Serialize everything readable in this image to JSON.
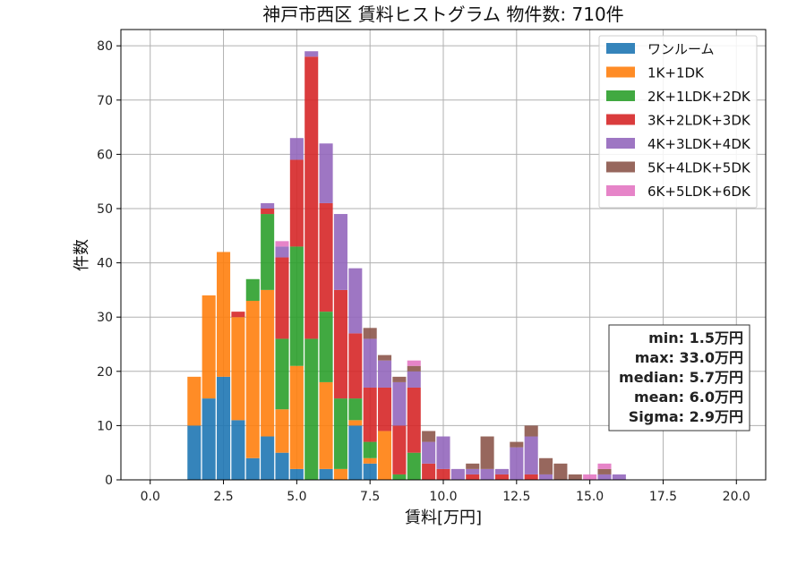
{
  "chart_data": {
    "type": "bar",
    "title": "神戸市西区 賃料ヒストグラム 物件数: 710件",
    "xlabel": "賃料[万円]",
    "ylabel": "件数",
    "xlim": [
      -1,
      21
    ],
    "ylim": [
      0,
      83
    ],
    "xticks": [
      0.0,
      2.5,
      5.0,
      7.5,
      10.0,
      12.5,
      15.0,
      17.5,
      20.0
    ],
    "xtick_labels": [
      "0.0",
      "2.5",
      "5.0",
      "7.5",
      "10.0",
      "12.5",
      "15.0",
      "17.5",
      "20.0"
    ],
    "yticks": [
      0,
      10,
      20,
      30,
      40,
      50,
      60,
      70,
      80
    ],
    "ytick_labels": [
      "0",
      "10",
      "20",
      "30",
      "40",
      "50",
      "60",
      "70",
      "80"
    ],
    "grid": true,
    "stacked": true,
    "legend_position": "top-right",
    "bin_width": 0.5,
    "x": [
      1.5,
      2.0,
      2.5,
      3.0,
      3.5,
      4.0,
      4.5,
      5.0,
      5.5,
      6.0,
      6.5,
      7.0,
      7.5,
      8.0,
      8.5,
      9.0,
      9.5,
      10.0,
      10.5,
      11.0,
      11.5,
      12.0,
      12.5,
      13.0,
      13.5,
      14.0,
      14.5,
      15.0,
      15.5,
      16.0
    ],
    "series": [
      {
        "name": "ワンルーム",
        "color": "#1f77b4",
        "values": [
          10,
          15,
          19,
          11,
          4,
          8,
          5,
          2,
          0,
          2,
          0,
          10,
          3,
          0,
          0,
          0,
          0,
          0,
          0,
          0,
          0,
          0,
          0,
          0,
          0,
          0,
          0,
          0,
          0,
          0
        ]
      },
      {
        "name": "1K+1DK",
        "color": "#ff7f0e",
        "values": [
          9,
          19,
          23,
          19,
          29,
          27,
          8,
          19,
          0,
          16,
          2,
          1,
          1,
          9,
          0,
          0,
          0,
          0,
          0,
          0,
          0,
          0,
          0,
          0,
          0,
          0,
          0,
          0,
          0,
          0
        ]
      },
      {
        "name": "2K+1LDK+2DK",
        "color": "#2ca02c",
        "values": [
          0,
          0,
          0,
          0,
          4,
          14,
          13,
          22,
          26,
          13,
          13,
          4,
          3,
          0,
          1,
          5,
          0,
          0,
          0,
          0,
          0,
          0,
          0,
          0,
          0,
          0,
          0,
          0,
          0,
          0
        ]
      },
      {
        "name": "3K+2LDK+3DK",
        "color": "#d62728",
        "values": [
          0,
          0,
          0,
          1,
          0,
          1,
          15,
          16,
          52,
          20,
          20,
          12,
          10,
          8,
          9,
          12,
          3,
          2,
          0,
          1,
          0,
          1,
          0,
          1,
          0,
          0,
          0,
          0,
          0,
          0
        ]
      },
      {
        "name": "4K+3LDK+4DK",
        "color": "#9467bd",
        "values": [
          0,
          0,
          0,
          0,
          0,
          1,
          2,
          4,
          1,
          11,
          14,
          12,
          9,
          5,
          8,
          3,
          4,
          6,
          2,
          1,
          2,
          1,
          6,
          7,
          1,
          0,
          0,
          0,
          1,
          1
        ]
      },
      {
        "name": "5K+4LDK+5DK",
        "color": "#8c564b",
        "values": [
          0,
          0,
          0,
          0,
          0,
          0,
          0,
          0,
          0,
          0,
          0,
          0,
          2,
          1,
          1,
          1,
          2,
          0,
          0,
          1,
          6,
          0,
          1,
          2,
          3,
          3,
          1,
          0,
          1,
          0
        ]
      },
      {
        "name": "6K+5LDK+6DK",
        "color": "#e377c2",
        "values": [
          0,
          0,
          0,
          0,
          0,
          0,
          1,
          0,
          0,
          0,
          0,
          0,
          0,
          0,
          0,
          1,
          0,
          0,
          0,
          0,
          0,
          0,
          0,
          0,
          0,
          0,
          0,
          1,
          1,
          0
        ]
      }
    ]
  },
  "stats": {
    "min": "min: 1.5万円",
    "max": "max: 33.0万円",
    "median": "median: 5.7万円",
    "mean": "mean: 6.0万円",
    "sigma": "Sigma: 2.9万円"
  }
}
